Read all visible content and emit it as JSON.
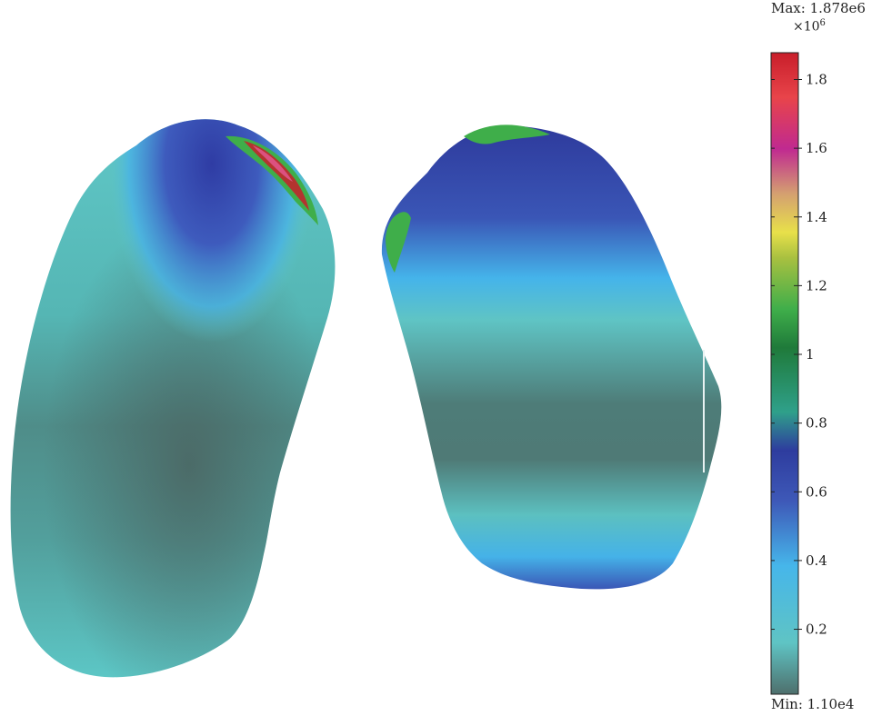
{
  "colorbar": {
    "max_label": "Max: 1.878e6",
    "min_label": "Min: 1.10e4",
    "multiplier_label": "×10",
    "multiplier_exponent": "6",
    "max_value": 1.878,
    "min_value": 0.011,
    "ticks": [
      "1.8",
      "1.6",
      "1.4",
      "1.2",
      "1",
      "0.8",
      "0.6",
      "0.4",
      "0.2"
    ],
    "tick_values": [
      1.8,
      1.6,
      1.4,
      1.2,
      1.0,
      0.8,
      0.6,
      0.4,
      0.2
    ],
    "colors": {
      "low": "#4e6f6c",
      "teal": "#5fc4c4",
      "light-blue": "#46b6ea",
      "blue": "#3e59b8",
      "dark-blue": "#2e3c9e",
      "green": "#3fae4a",
      "dark-green": "#1f7a3a",
      "yellow": "#e8e04a",
      "magenta": "#c02a90",
      "red": "#c81e2a"
    }
  }
}
